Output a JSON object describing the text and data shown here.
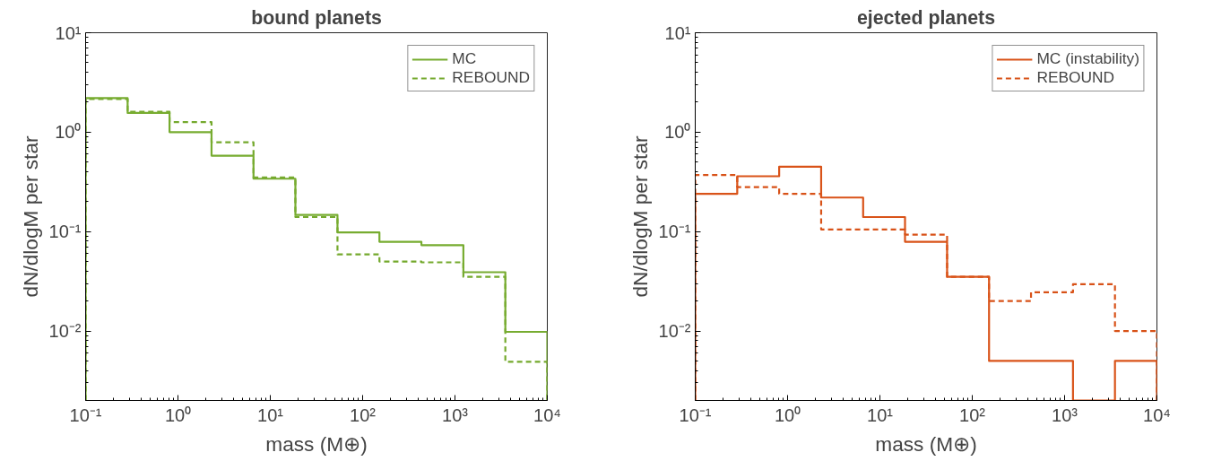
{
  "chart_data": [
    {
      "type": "histogram",
      "title": "bound planets",
      "xlabel": "mass (M⊕)",
      "ylabel": "dN/dlogM per star",
      "bins": [
        0.1,
        0.285,
        0.811,
        2.31,
        6.58,
        18.7,
        53.4,
        152,
        433,
        1233,
        3511,
        10000
      ],
      "series": [
        {
          "name": "MC",
          "color": "#77ac30",
          "line_style": "solid",
          "values": [
            2.2,
            1.56,
            1.0,
            0.58,
            0.34,
            0.147,
            0.098,
            0.079,
            0.073,
            0.039,
            0.0098
          ]
        },
        {
          "name": "REBOUND",
          "color": "#74a92d",
          "line_style": "dashed",
          "values": [
            2.15,
            1.6,
            1.26,
            0.79,
            0.35,
            0.14,
            0.059,
            0.05,
            0.049,
            0.035,
            0.0049
          ]
        }
      ],
      "log": "xy",
      "xlim": [
        0.1,
        10000
      ],
      "ylim": [
        0.002,
        10
      ],
      "xticks": [
        {
          "value": 0.1,
          "label": "10⁻¹"
        },
        {
          "value": 1,
          "label": "10⁰"
        },
        {
          "value": 10,
          "label": "10¹"
        },
        {
          "value": 100,
          "label": "10²"
        },
        {
          "value": 1000,
          "label": "10³"
        },
        {
          "value": 10000,
          "label": "10⁴"
        }
      ],
      "yticks": [
        {
          "value": 0.01,
          "label": "10⁻²"
        },
        {
          "value": 0.1,
          "label": "10⁻¹"
        },
        {
          "value": 1,
          "label": "10⁰"
        },
        {
          "value": 10,
          "label": "10¹"
        }
      ],
      "grid": false,
      "legend": "top right"
    },
    {
      "type": "histogram",
      "title": "ejected planets",
      "xlabel": "mass (M⊕)",
      "ylabel": "dN/dlogM per star",
      "bins": [
        0.1,
        0.285,
        0.811,
        2.31,
        6.58,
        18.7,
        53.4,
        152,
        433,
        1233,
        3511,
        10000
      ],
      "series": [
        {
          "name": "MC (instability)",
          "color": "#d95319",
          "line_style": "solid",
          "values": [
            0.24,
            0.36,
            0.45,
            0.22,
            0.14,
            0.079,
            0.035,
            0.005,
            0.005,
            null,
            0.005
          ]
        },
        {
          "name": "REBOUND",
          "color": "#d85218",
          "line_style": "dashed",
          "values": [
            0.37,
            0.28,
            0.24,
            0.105,
            0.105,
            0.093,
            0.035,
            0.02,
            0.0245,
            0.0295,
            0.01
          ]
        }
      ],
      "log": "xy",
      "xlim": [
        0.1,
        10000
      ],
      "ylim": [
        0.002,
        10
      ],
      "xticks": [
        {
          "value": 0.1,
          "label": "10⁻¹"
        },
        {
          "value": 1,
          "label": "10⁰"
        },
        {
          "value": 10,
          "label": "10¹"
        },
        {
          "value": 100,
          "label": "10²"
        },
        {
          "value": 1000,
          "label": "10³"
        },
        {
          "value": 10000,
          "label": "10⁴"
        }
      ],
      "yticks": [
        {
          "value": 0.01,
          "label": "10⁻²"
        },
        {
          "value": 0.1,
          "label": "10⁻¹"
        },
        {
          "value": 1,
          "label": "10⁰"
        },
        {
          "value": 10,
          "label": "10¹"
        }
      ],
      "grid": false,
      "legend": "top right"
    }
  ]
}
